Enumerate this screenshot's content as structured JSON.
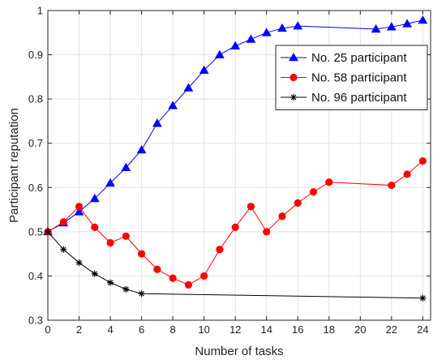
{
  "chart_data": {
    "type": "line",
    "title": "",
    "xlabel": "Number of tasks",
    "ylabel": "Participant reputation",
    "xlim": [
      0,
      24.5
    ],
    "ylim": [
      0.3,
      1.0
    ],
    "xticks": [
      0,
      2,
      4,
      6,
      8,
      10,
      12,
      14,
      16,
      18,
      20,
      22,
      24
    ],
    "yticks": [
      0.3,
      0.4,
      0.5,
      0.6,
      0.7,
      0.8,
      0.9,
      1.0
    ],
    "xtick_labels": [
      "0",
      "2",
      "4",
      "6",
      "8",
      "10",
      "12",
      "14",
      "16",
      "18",
      "20",
      "22",
      "24"
    ],
    "ytick_labels": [
      "0.3",
      "0.4",
      "0.5",
      "0.6",
      "0.7",
      "0.8",
      "0.9",
      "1"
    ],
    "grid": true,
    "legend_position": "top-right",
    "series": [
      {
        "name": "No. 25 participant",
        "color": "#0000ff",
        "marker": "triangle",
        "x": [
          0,
          1,
          2,
          3,
          4,
          5,
          6,
          7,
          8,
          9,
          10,
          11,
          12,
          13,
          14,
          15,
          16,
          21,
          22,
          23,
          24
        ],
        "y": [
          0.5,
          0.52,
          0.545,
          0.575,
          0.61,
          0.645,
          0.685,
          0.745,
          0.785,
          0.825,
          0.865,
          0.9,
          0.92,
          0.935,
          0.95,
          0.96,
          0.965,
          0.958,
          0.963,
          0.97,
          0.978
        ]
      },
      {
        "name": "No. 58 participant",
        "color": "#ff0000",
        "marker": "circle",
        "x": [
          0,
          1,
          2,
          3,
          4,
          5,
          6,
          7,
          8,
          9,
          10,
          11,
          12,
          13,
          14,
          15,
          16,
          17,
          18,
          22,
          23,
          24
        ],
        "y": [
          0.5,
          0.522,
          0.557,
          0.51,
          0.475,
          0.49,
          0.45,
          0.415,
          0.395,
          0.38,
          0.4,
          0.46,
          0.51,
          0.557,
          0.5,
          0.535,
          0.565,
          0.59,
          0.612,
          0.605,
          0.63,
          0.66
        ]
      },
      {
        "name": "No. 96 participant",
        "color": "#000000",
        "marker": "star",
        "x": [
          0,
          1,
          2,
          3,
          4,
          5,
          6,
          24
        ],
        "y": [
          0.5,
          0.46,
          0.43,
          0.405,
          0.385,
          0.37,
          0.36,
          0.35
        ]
      }
    ]
  }
}
